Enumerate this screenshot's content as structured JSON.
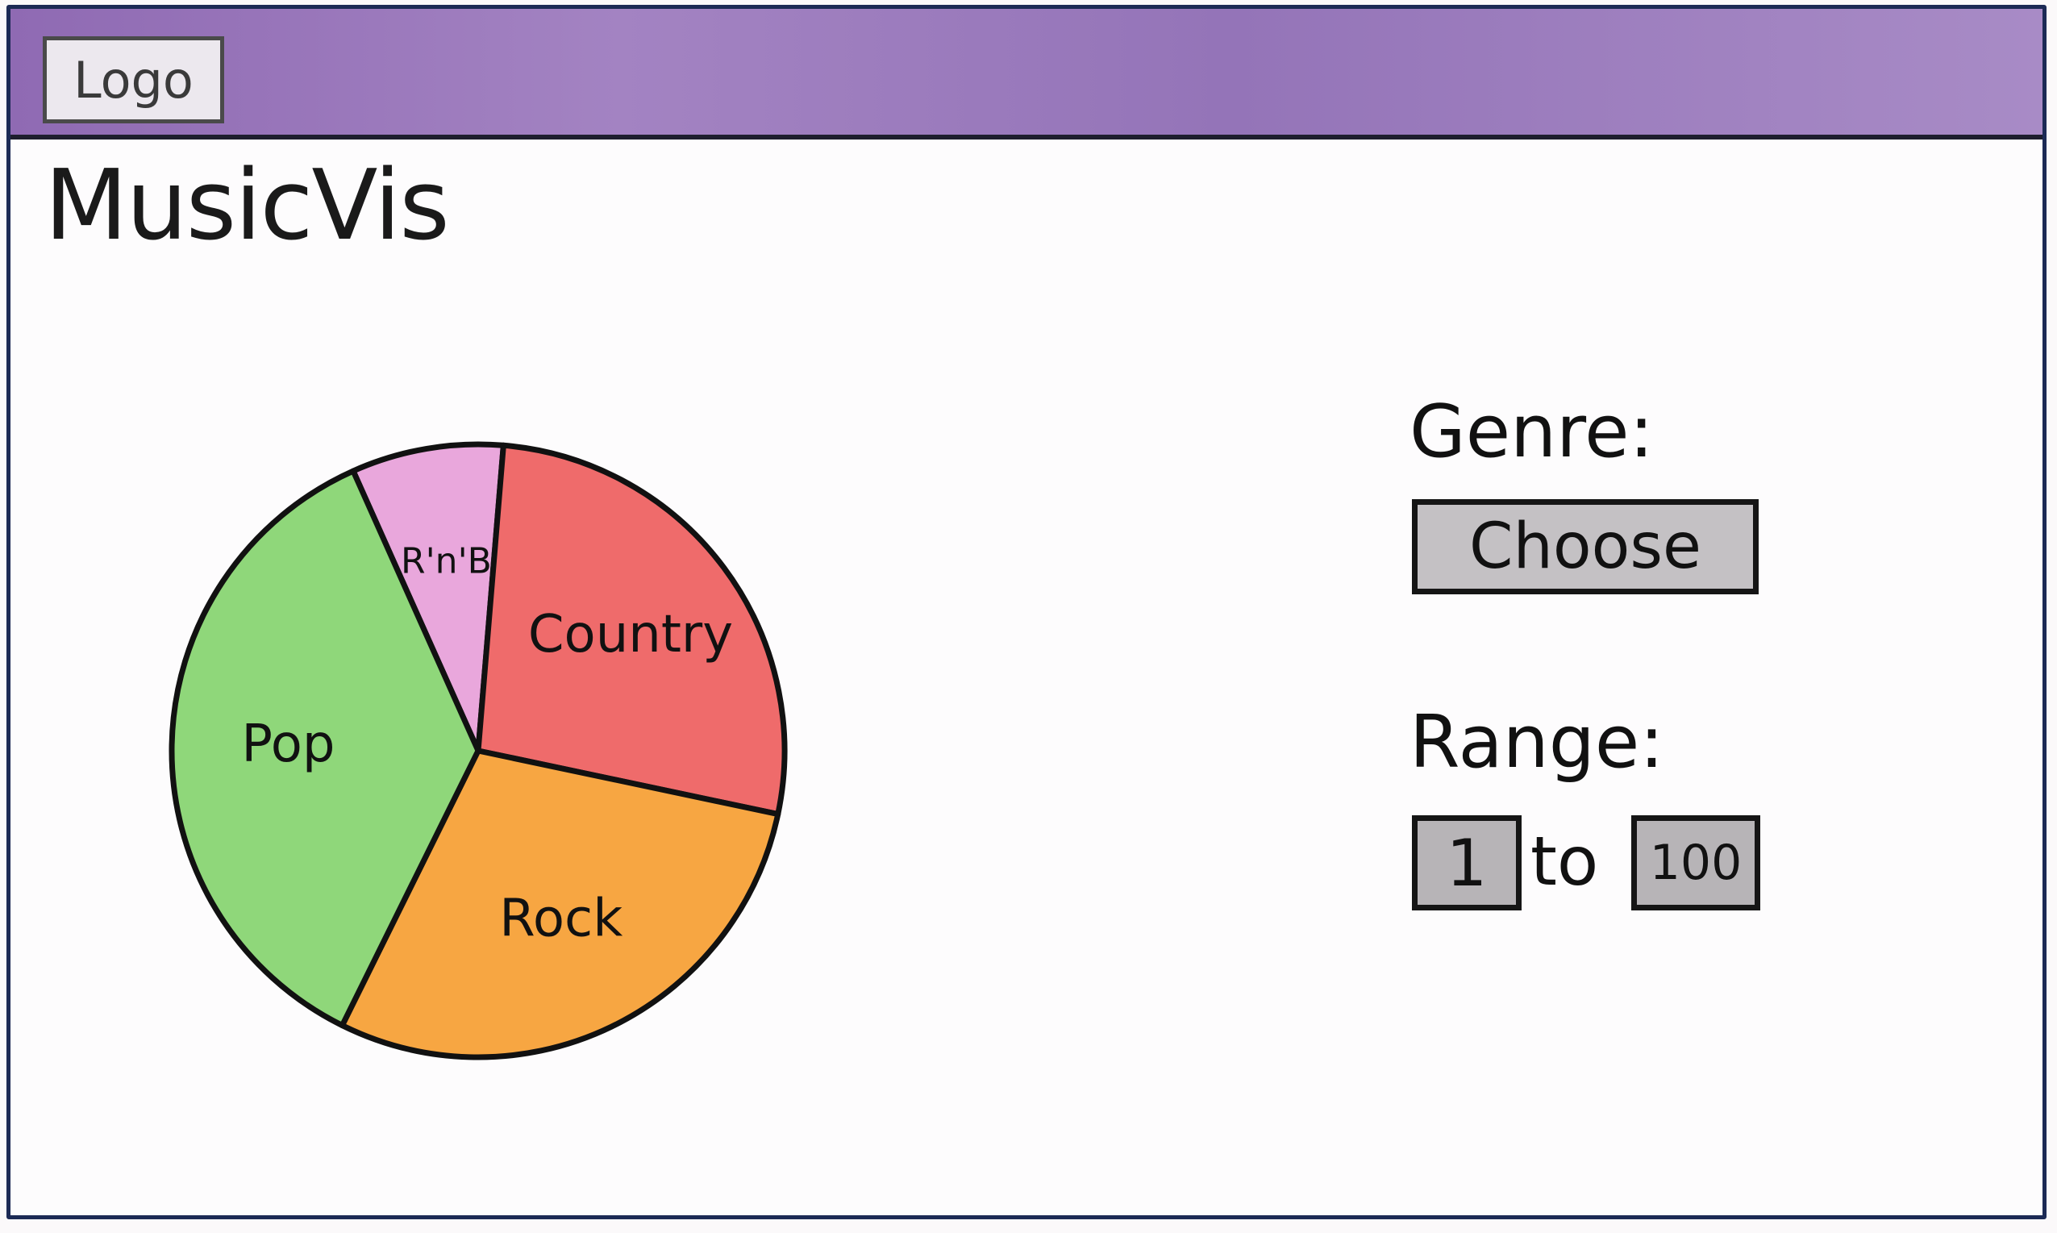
{
  "header": {
    "logo_text": "Logo",
    "bar_color": "#9a78bd"
  },
  "app": {
    "title": "MusicVis"
  },
  "controls": {
    "genre_label": "Genre:",
    "genre_button": "Choose",
    "range_label": "Range:",
    "range_min": "1",
    "range_to": "to",
    "range_max": "100"
  },
  "chart_data": {
    "type": "pie",
    "title": "",
    "slices": [
      {
        "label": "R'n'B",
        "value": 8,
        "color": "#e9a7dc"
      },
      {
        "label": "Country",
        "value": 27,
        "color": "#ef6b6b"
      },
      {
        "label": "Rock",
        "value": 29,
        "color": "#f7a642"
      },
      {
        "label": "Pop",
        "value": 36,
        "color": "#8fd77a"
      }
    ]
  }
}
